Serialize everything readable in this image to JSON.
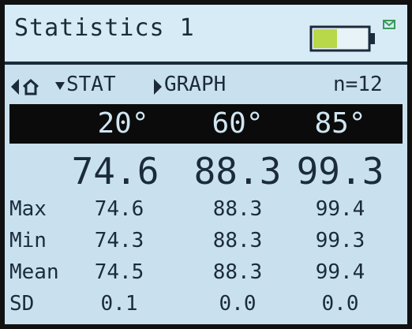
{
  "header": {
    "title": "Statistics 1"
  },
  "nav": {
    "stat": "STAT",
    "graph": "GRAPH",
    "count": "n=12"
  },
  "angles": [
    "20°",
    "60°",
    "85°"
  ],
  "readings": [
    "74.6",
    "88.3",
    "99.3"
  ],
  "table": {
    "rows": [
      [
        "Max",
        "74.6",
        "88.3",
        "99.4"
      ],
      [
        "Min",
        "74.3",
        "88.3",
        "99.3"
      ],
      [
        "Mean",
        "74.5",
        "88.3",
        "99.4"
      ],
      [
        "SD",
        "0.1",
        "0.0",
        "0.0"
      ]
    ]
  }
}
